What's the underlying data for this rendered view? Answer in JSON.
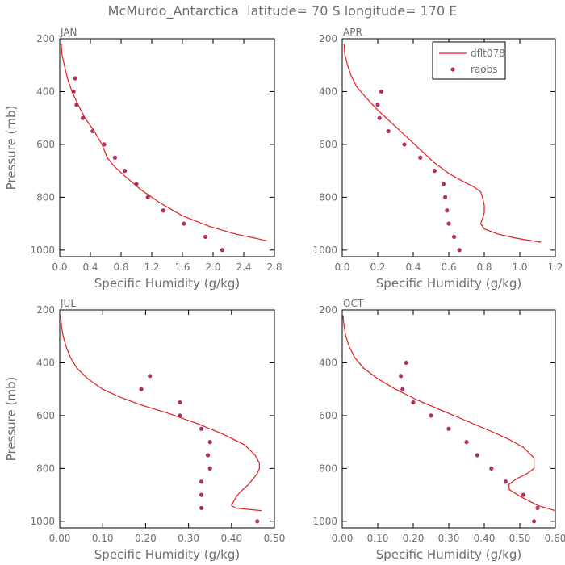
{
  "title": "McMurdo_Antarctica  latitude= 70 S longitude= 170 E",
  "colors": {
    "model": "#e0201b",
    "obs": "#b03060",
    "text": "#6e6e6e"
  },
  "legend": {
    "model": "dflt078",
    "obs": "raobs"
  },
  "chart_data": [
    {
      "type": "line",
      "panel": "JAN",
      "xlabel": "Specific Humidity (g/kg)",
      "ylabel": "Pressure (mb)",
      "xlim": [
        0,
        2.8
      ],
      "ylim": [
        200,
        1025
      ],
      "xticks": [
        0,
        0.4,
        0.8,
        1.2,
        1.6,
        2.0,
        2.4,
        2.8
      ],
      "xtick_labels": [
        "0.0",
        "0.4",
        "0.8",
        "1.2",
        "1.6",
        "2.0",
        "2.4",
        "2.8"
      ],
      "yticks": [
        200,
        400,
        600,
        800,
        1000
      ],
      "ytick_labels": [
        "200",
        "400",
        "600",
        "800",
        "1000"
      ],
      "show_legend": false,
      "series": [
        {
          "name": "dflt078",
          "kind": "line",
          "x": [
            0.02,
            0.03,
            0.06,
            0.1,
            0.16,
            0.24,
            0.33,
            0.45,
            0.55,
            0.62,
            0.7,
            0.85,
            1.05,
            1.3,
            1.6,
            1.95,
            2.3,
            2.55,
            2.7
          ],
          "y": [
            220,
            260,
            300,
            350,
            400,
            450,
            500,
            550,
            600,
            650,
            680,
            720,
            770,
            820,
            870,
            910,
            940,
            955,
            965
          ]
        },
        {
          "name": "raobs",
          "kind": "scatter",
          "x": [
            0.2,
            0.18,
            0.22,
            0.3,
            0.43,
            0.58,
            0.72,
            0.85,
            1.0,
            1.15,
            1.35,
            1.62,
            1.9,
            2.12
          ],
          "y": [
            350,
            400,
            450,
            500,
            550,
            600,
            650,
            700,
            750,
            800,
            850,
            900,
            950,
            1000
          ]
        }
      ]
    },
    {
      "type": "line",
      "panel": "APR",
      "xlabel": "Specific Humidity (g/kg)",
      "ylabel": "",
      "xlim": [
        0,
        1.2
      ],
      "ylim": [
        200,
        1025
      ],
      "xticks": [
        0,
        0.2,
        0.4,
        0.6,
        0.8,
        1.0,
        1.2
      ],
      "xtick_labels": [
        "0.0",
        "0.2",
        "0.4",
        "0.6",
        "0.8",
        "1.0",
        "1.2"
      ],
      "yticks": [
        200,
        400,
        600,
        800,
        1000
      ],
      "ytick_labels": [
        "200",
        "400",
        "600",
        "800",
        "1000"
      ],
      "show_legend": true,
      "series": [
        {
          "name": "dflt078",
          "kind": "line",
          "x": [
            0.01,
            0.015,
            0.03,
            0.05,
            0.08,
            0.13,
            0.2,
            0.28,
            0.36,
            0.44,
            0.52,
            0.6,
            0.68,
            0.74,
            0.78,
            0.79,
            0.8,
            0.8,
            0.79,
            0.78,
            0.8,
            0.88,
            0.98,
            1.07,
            1.12
          ],
          "y": [
            220,
            260,
            300,
            340,
            380,
            420,
            470,
            520,
            570,
            620,
            670,
            710,
            740,
            760,
            780,
            800,
            830,
            860,
            880,
            900,
            920,
            940,
            955,
            965,
            970
          ]
        },
        {
          "name": "raobs",
          "kind": "scatter",
          "x": [
            0.22,
            0.2,
            0.21,
            0.26,
            0.35,
            0.44,
            0.52,
            0.57,
            0.58,
            0.59,
            0.6,
            0.63,
            0.66
          ],
          "y": [
            400,
            450,
            500,
            550,
            600,
            650,
            700,
            750,
            800,
            850,
            900,
            950,
            1000
          ]
        }
      ]
    },
    {
      "type": "line",
      "panel": "JUL",
      "xlabel": "Specific Humidity (g/kg)",
      "ylabel": "Pressure (mb)",
      "xlim": [
        0,
        0.5
      ],
      "ylim": [
        200,
        1025
      ],
      "xticks": [
        0,
        0.1,
        0.2,
        0.3,
        0.4,
        0.5
      ],
      "xtick_labels": [
        "0.00",
        "0.10",
        "0.20",
        "0.30",
        "0.40",
        "0.50"
      ],
      "yticks": [
        200,
        400,
        600,
        800,
        1000
      ],
      "ytick_labels": [
        "200",
        "400",
        "600",
        "800",
        "1000"
      ],
      "show_legend": false,
      "series": [
        {
          "name": "dflt078",
          "kind": "line",
          "x": [
            0.002,
            0.004,
            0.008,
            0.015,
            0.025,
            0.04,
            0.065,
            0.1,
            0.14,
            0.19,
            0.25,
            0.32,
            0.38,
            0.43,
            0.455,
            0.465,
            0.465,
            0.46,
            0.44,
            0.42,
            0.41,
            0.4,
            0.41,
            0.44,
            0.47
          ],
          "y": [
            220,
            260,
            300,
            340,
            380,
            420,
            460,
            500,
            530,
            560,
            590,
            630,
            670,
            710,
            750,
            780,
            800,
            820,
            860,
            890,
            910,
            940,
            950,
            955,
            960
          ]
        },
        {
          "name": "raobs",
          "kind": "scatter",
          "x": [
            0.21,
            0.19,
            0.28,
            0.28,
            0.33,
            0.35,
            0.345,
            0.35,
            0.33,
            0.33,
            0.33,
            0.46
          ],
          "y": [
            450,
            500,
            550,
            600,
            650,
            700,
            750,
            800,
            850,
            900,
            950,
            1000
          ]
        }
      ]
    },
    {
      "type": "line",
      "panel": "OCT",
      "xlabel": "Specific Humidity (g/kg)",
      "ylabel": "",
      "xlim": [
        0,
        0.6
      ],
      "ylim": [
        200,
        1025
      ],
      "xticks": [
        0,
        0.1,
        0.2,
        0.3,
        0.4,
        0.5,
        0.6
      ],
      "xtick_labels": [
        "0.00",
        "0.10",
        "0.20",
        "0.30",
        "0.40",
        "0.50",
        "0.60"
      ],
      "yticks": [
        200,
        400,
        600,
        800,
        1000
      ],
      "ytick_labels": [
        "200",
        "400",
        "600",
        "800",
        "1000"
      ],
      "show_legend": false,
      "series": [
        {
          "name": "dflt078",
          "kind": "line",
          "x": [
            0.002,
            0.005,
            0.01,
            0.02,
            0.035,
            0.06,
            0.1,
            0.15,
            0.21,
            0.28,
            0.35,
            0.42,
            0.47,
            0.51,
            0.54,
            0.54,
            0.52,
            0.49,
            0.47,
            0.47,
            0.5,
            0.55,
            0.6
          ],
          "y": [
            220,
            260,
            300,
            340,
            380,
            420,
            460,
            500,
            540,
            580,
            620,
            660,
            690,
            720,
            760,
            800,
            820,
            840,
            860,
            880,
            905,
            940,
            960
          ]
        },
        {
          "name": "raobs",
          "kind": "scatter",
          "x": [
            0.18,
            0.165,
            0.17,
            0.2,
            0.25,
            0.3,
            0.35,
            0.38,
            0.42,
            0.46,
            0.51,
            0.55,
            0.54
          ],
          "y": [
            400,
            450,
            500,
            550,
            600,
            650,
            700,
            750,
            800,
            850,
            900,
            950,
            1000
          ]
        }
      ]
    }
  ]
}
